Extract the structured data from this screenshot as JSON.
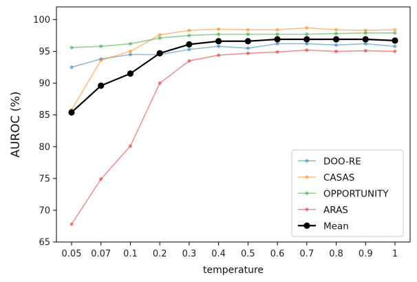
{
  "chart_data": {
    "type": "line",
    "title": "",
    "xlabel": "temperature",
    "ylabel": "AUROC (%)",
    "x": [
      "0.05",
      "0.07",
      "0.1",
      "0.2",
      "0.3",
      "0.4",
      "0.5",
      "0.6",
      "0.7",
      "0.8",
      "0.9",
      "1"
    ],
    "ylim": [
      65,
      102
    ],
    "yticks": [
      65,
      70,
      75,
      80,
      85,
      90,
      95,
      100
    ],
    "grid": false,
    "legend_position": "bottom-right",
    "series": [
      {
        "name": "DOO-RE",
        "color": "#1f77b4",
        "values": [
          92.5,
          93.8,
          94.5,
          94.5,
          95.3,
          95.8,
          95.5,
          96.2,
          96.2,
          96.0,
          96.2,
          95.8
        ]
      },
      {
        "name": "CASAS",
        "color": "#ff7f0e",
        "values": [
          85.8,
          93.6,
          95.0,
          97.6,
          98.3,
          98.5,
          98.4,
          98.4,
          98.7,
          98.4,
          98.3,
          98.4
        ]
      },
      {
        "name": "OPPORTUNITY",
        "color": "#2ca02c",
        "values": [
          95.6,
          95.8,
          96.2,
          97.1,
          97.5,
          97.7,
          97.7,
          97.7,
          97.7,
          97.8,
          97.9,
          97.9
        ]
      },
      {
        "name": "ARAS",
        "color": "#d62728",
        "values": [
          67.8,
          74.9,
          80.1,
          90.0,
          93.5,
          94.4,
          94.7,
          94.9,
          95.2,
          95.0,
          95.1,
          95.0
        ]
      },
      {
        "name": "Mean",
        "color": "#000000",
        "values": [
          85.4,
          89.6,
          91.5,
          94.7,
          96.1,
          96.6,
          96.6,
          96.9,
          96.9,
          96.9,
          96.9,
          96.7
        ]
      }
    ]
  }
}
